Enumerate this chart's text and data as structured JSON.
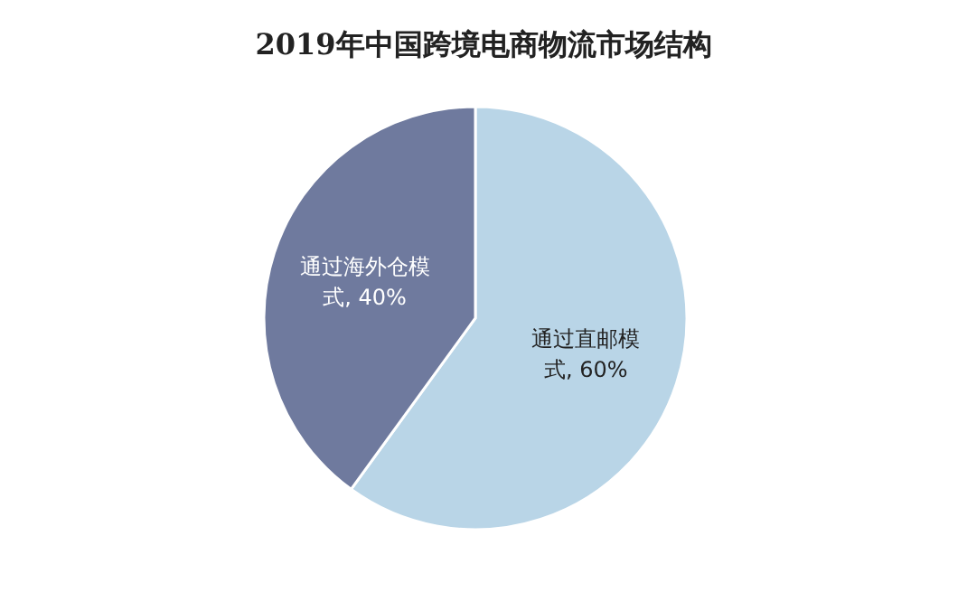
{
  "chart_data": {
    "type": "pie",
    "title": "2019年中国跨境电商物流市场结构",
    "categories": [
      "通过直邮模式",
      "通过海外仓模式"
    ],
    "values": [
      60,
      40
    ],
    "colors": [
      "#b9d5e7",
      "#6f7a9e"
    ],
    "value_labels": [
      "60%",
      "40%"
    ]
  }
}
